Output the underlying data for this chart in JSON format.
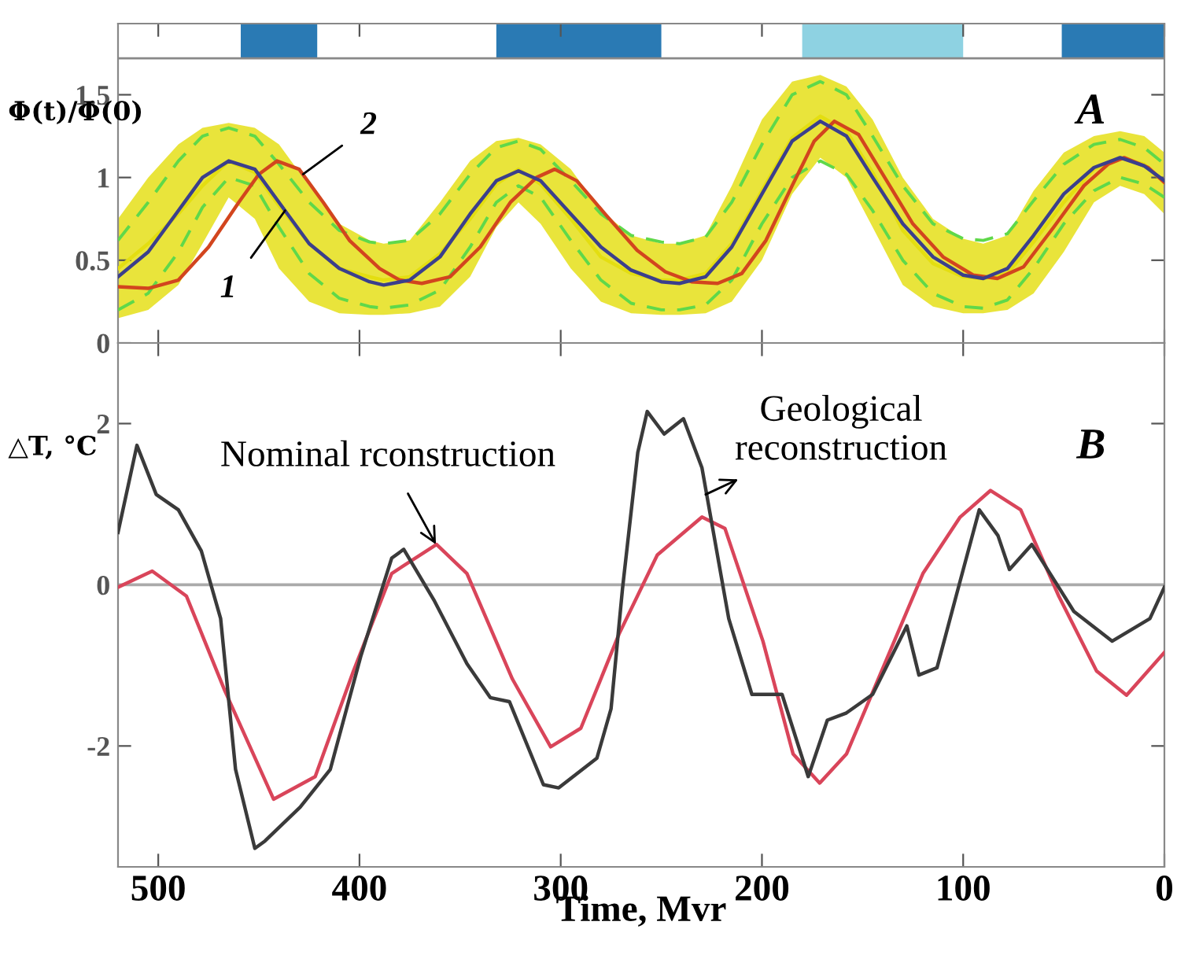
{
  "chart_data": [
    {
      "type": "line",
      "ylabel": "Φ(t)/Φ(0)",
      "xlim": [
        520,
        0
      ],
      "ylim": [
        0,
        1.93
      ],
      "bands": [
        {
          "axis": "x",
          "from": 459,
          "to": 421,
          "color": "#2a7ab4"
        },
        {
          "axis": "x",
          "from": 332,
          "to": 250,
          "color": "#2a7ab4"
        },
        {
          "axis": "x",
          "from": 180,
          "to": 100,
          "color": "#8ed2e2"
        },
        {
          "axis": "x",
          "from": 51,
          "to": 0,
          "color": "#2a7ab4"
        }
      ],
      "xticks": [
        500,
        400,
        300,
        200,
        100,
        0
      ],
      "yticks": [
        0,
        0.5,
        1,
        1.5
      ],
      "tick_labels": "y",
      "grid": false,
      "legend": false,
      "x": [
        520,
        505,
        490,
        478,
        465,
        452,
        440,
        425,
        410,
        395,
        388,
        375,
        360,
        345,
        332,
        321,
        310,
        295,
        280,
        265,
        250,
        241,
        228,
        215,
        200,
        185,
        171,
        158,
        145,
        130,
        115,
        100,
        90,
        78,
        65,
        50,
        35,
        22,
        10,
        0
      ],
      "ref_lines": [
        {
          "axis": "y",
          "value": 1.72,
          "color": "#888888"
        }
      ],
      "annotations": [
        "A",
        {
          "text": "1",
          "x": 437,
          "y": 0.8
        },
        {
          "text": "2",
          "x": 428,
          "y": 1.02
        }
      ],
      "series": [
        {
          "color": "#e4de10",
          "lower": [
            0.15,
            0.2,
            0.35,
            0.6,
            0.88,
            0.75,
            0.45,
            0.25,
            0.18,
            0.17,
            0.17,
            0.18,
            0.22,
            0.4,
            0.7,
            0.85,
            0.72,
            0.45,
            0.25,
            0.18,
            0.17,
            0.17,
            0.18,
            0.25,
            0.5,
            0.9,
            1.12,
            1.0,
            0.7,
            0.35,
            0.22,
            0.18,
            0.18,
            0.2,
            0.3,
            0.55,
            0.85,
            0.95,
            0.9,
            0.78
          ],
          "upper": [
            0.75,
            1.0,
            1.2,
            1.3,
            1.33,
            1.3,
            1.2,
            0.95,
            0.72,
            0.62,
            0.6,
            0.62,
            0.85,
            1.1,
            1.22,
            1.24,
            1.2,
            1.05,
            0.8,
            0.65,
            0.6,
            0.6,
            0.65,
            0.95,
            1.35,
            1.58,
            1.62,
            1.55,
            1.35,
            1.0,
            0.75,
            0.63,
            0.6,
            0.65,
            0.92,
            1.15,
            1.25,
            1.28,
            1.25,
            1.15
          ],
          "values": [
            0.45,
            0.6,
            0.78,
            0.95,
            1.1,
            1.03,
            0.83,
            0.6,
            0.45,
            0.4,
            0.38,
            0.4,
            0.54,
            0.75,
            0.96,
            1.05,
            0.96,
            0.75,
            0.52,
            0.42,
            0.38,
            0.38,
            0.42,
            0.6,
            0.92,
            1.24,
            1.37,
            1.28,
            1.03,
            0.68,
            0.48,
            0.4,
            0.39,
            0.42,
            0.61,
            0.85,
            1.05,
            1.12,
            1.08,
            0.97
          ]
        },
        {
          "color": "#5fd84a",
          "line_style": "dashed",
          "values": [
            0.62,
            0.85,
            1.1,
            1.25,
            1.3,
            1.25,
            1.08,
            0.85,
            0.68,
            0.61,
            0.6,
            0.62,
            0.78,
            1.02,
            1.18,
            1.22,
            1.17,
            0.98,
            0.78,
            0.65,
            0.61,
            0.6,
            0.64,
            0.85,
            1.2,
            1.5,
            1.58,
            1.5,
            1.25,
            0.95,
            0.72,
            0.63,
            0.62,
            0.66,
            0.86,
            1.08,
            1.2,
            1.23,
            1.18,
            1.08
          ]
        },
        {
          "color": "#5fd84a",
          "line_style": "dashed",
          "values": [
            0.2,
            0.3,
            0.55,
            0.82,
            1.0,
            0.95,
            0.7,
            0.42,
            0.27,
            0.22,
            0.21,
            0.23,
            0.32,
            0.58,
            0.85,
            0.95,
            0.88,
            0.62,
            0.38,
            0.24,
            0.2,
            0.2,
            0.23,
            0.38,
            0.72,
            1.0,
            1.1,
            1.02,
            0.8,
            0.5,
            0.3,
            0.22,
            0.21,
            0.26,
            0.45,
            0.72,
            0.92,
            1.0,
            0.96,
            0.88
          ]
        },
        {
          "color": "#d2451e",
          "x": [
            520,
            505,
            490,
            475,
            460,
            450,
            441,
            430,
            418,
            405,
            390,
            380,
            369,
            355,
            340,
            325,
            312,
            303,
            292,
            278,
            262,
            248,
            235,
            222,
            210,
            198,
            185,
            174,
            164,
            152,
            140,
            125,
            110,
            95,
            83,
            70,
            55,
            40,
            28,
            20,
            8,
            0
          ],
          "values": [
            0.34,
            0.33,
            0.38,
            0.58,
            0.85,
            1.02,
            1.1,
            1.05,
            0.85,
            0.62,
            0.45,
            0.38,
            0.36,
            0.4,
            0.58,
            0.85,
            1.0,
            1.05,
            0.98,
            0.78,
            0.56,
            0.43,
            0.37,
            0.36,
            0.42,
            0.62,
            0.95,
            1.22,
            1.34,
            1.26,
            1.02,
            0.72,
            0.52,
            0.41,
            0.39,
            0.46,
            0.7,
            0.95,
            1.08,
            1.12,
            1.06,
            0.97
          ]
        },
        {
          "color": "#3b3f8c",
          "values": [
            0.4,
            0.55,
            0.8,
            1.0,
            1.1,
            1.05,
            0.85,
            0.6,
            0.45,
            0.37,
            0.35,
            0.38,
            0.52,
            0.78,
            0.98,
            1.04,
            0.98,
            0.78,
            0.58,
            0.44,
            0.37,
            0.36,
            0.4,
            0.58,
            0.9,
            1.22,
            1.34,
            1.25,
            1.0,
            0.72,
            0.52,
            0.41,
            0.39,
            0.45,
            0.65,
            0.9,
            1.06,
            1.12,
            1.07,
            0.98
          ]
        }
      ]
    },
    {
      "type": "line",
      "xlabel": "Time, Mvr",
      "ylabel": "△T, °C",
      "xlim": [
        520,
        0
      ],
      "ylim": [
        -3.5,
        3
      ],
      "xticks": [
        500,
        400,
        300,
        200,
        100,
        0
      ],
      "yticks": [
        -2,
        0,
        2
      ],
      "grid": false,
      "legend": false,
      "ref_lines": [
        {
          "axis": "y",
          "value": 0,
          "color": "#aaaaaa"
        }
      ],
      "annotations": [
        "B",
        {
          "text": "Nominal rconstruction",
          "x": 362,
          "y": 0.5
        },
        {
          "text": "Geological\nreconstruction",
          "x": 228,
          "y": 1.12
        }
      ],
      "series": [
        {
          "color": "#d9455a",
          "x": [
            520,
            503,
            486,
            467,
            442.7,
            422,
            403,
            384,
            361.7,
            346.6,
            324,
            305,
            290,
            271,
            252,
            229.8,
            218.4,
            199.5,
            184.5,
            171.3,
            158,
            139,
            120,
            101.5,
            86.4,
            71.4,
            52.5,
            33.7,
            18.8,
            0
          ],
          "values": [
            -0.03,
            0.17,
            -0.14,
            -1.31,
            -2.66,
            -2.38,
            -1.07,
            0.14,
            0.5,
            0.14,
            -1.17,
            -2.01,
            -1.78,
            -0.61,
            0.37,
            0.84,
            0.7,
            -0.7,
            -2.1,
            -2.46,
            -2.1,
            -0.98,
            0.14,
            0.84,
            1.17,
            0.93,
            -0.14,
            -1.07,
            -1.37,
            -0.84
          ]
        },
        {
          "color": "#3a3a3a",
          "x": [
            520,
            510.6,
            501,
            490,
            478.6,
            469,
            461.6,
            452,
            447,
            429.5,
            414.5,
            399.4,
            384,
            378,
            363,
            346.6,
            335,
            325.5,
            308.6,
            301,
            282,
            275,
            269.3,
            261.7,
            257,
            248.6,
            239,
            229.8,
            216.5,
            205,
            190,
            177,
            167.5,
            158,
            145,
            128,
            122,
            113,
            103.5,
            92,
            82.7,
            77,
            65.9,
            45,
            26,
            7.2,
            0
          ],
          "values": [
            0.65,
            1.73,
            1.12,
            0.93,
            0.42,
            -0.42,
            -2.29,
            -3.27,
            -3.18,
            -2.76,
            -2.29,
            -0.89,
            0.33,
            0.44,
            -0.19,
            -0.98,
            -1.4,
            -1.45,
            -2.48,
            -2.52,
            -2.15,
            -1.54,
            -0.05,
            1.64,
            2.15,
            1.87,
            2.06,
            1.45,
            -0.42,
            -1.36,
            -1.36,
            -2.38,
            -1.68,
            -1.59,
            -1.36,
            -0.51,
            -1.12,
            -1.03,
            -0.14,
            0.93,
            0.61,
            0.19,
            0.5,
            -0.33,
            -0.7,
            -0.42,
            -0.03
          ]
        }
      ]
    }
  ]
}
